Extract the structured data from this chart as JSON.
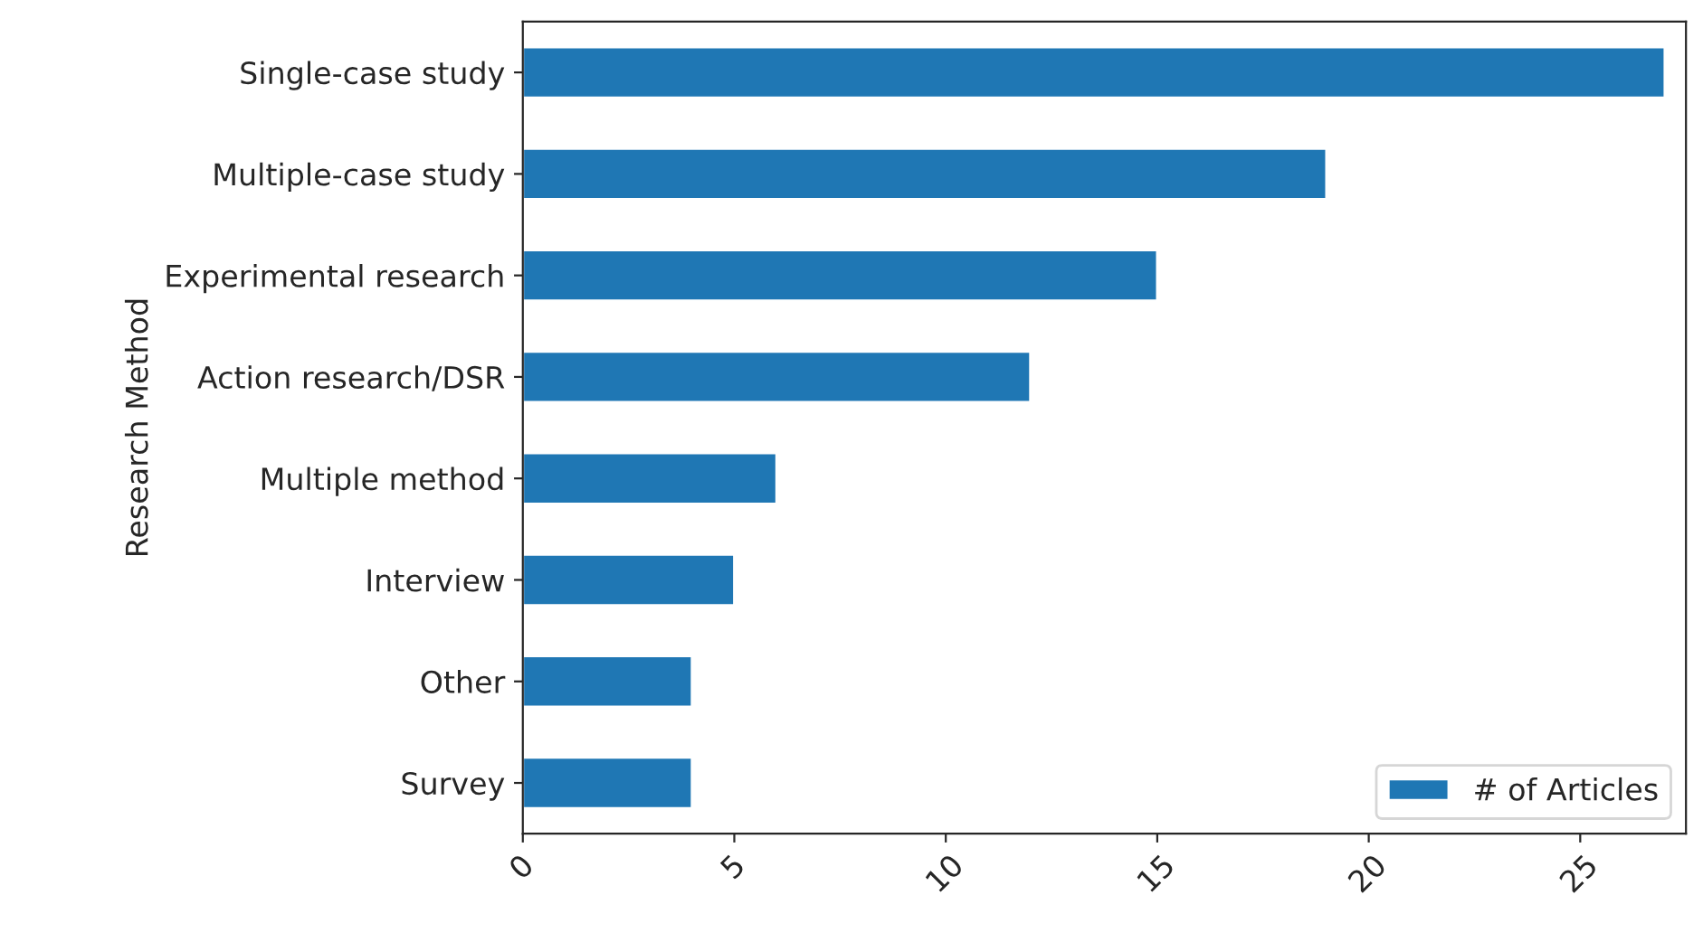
{
  "chart_data": {
    "type": "bar",
    "orientation": "horizontal",
    "ylabel": "Research Method",
    "categories": [
      "Single-case study",
      "Multiple-case study",
      "Experimental research",
      "Action research/DSR",
      "Multiple method",
      "Interview",
      "Other",
      "Survey"
    ],
    "series": [
      {
        "name": "# of Articles",
        "color": "#1f77b4",
        "values": [
          27,
          19,
          15,
          12,
          6,
          5,
          4,
          4
        ]
      }
    ],
    "xlim": [
      0,
      27.5
    ],
    "xticks": [
      0,
      5,
      10,
      15,
      20,
      25
    ],
    "legend": "bottom right",
    "grid": false
  }
}
